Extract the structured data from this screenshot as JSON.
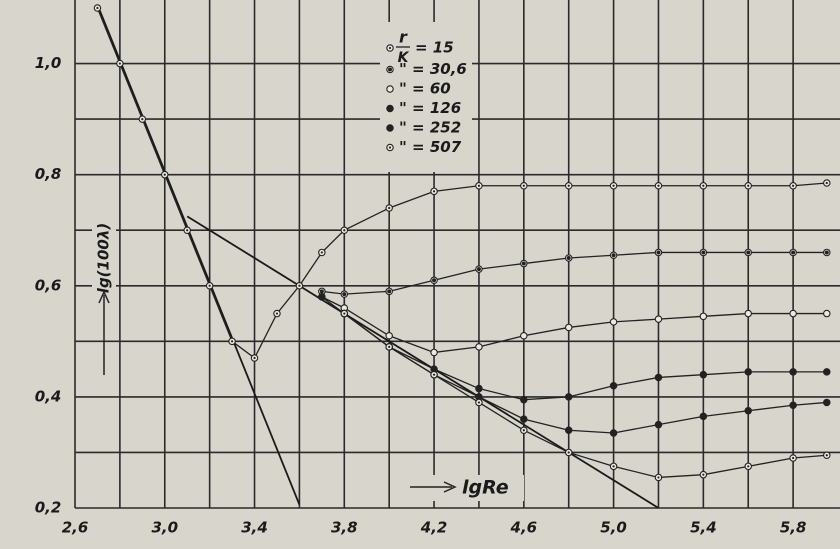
{
  "chart_data": {
    "type": "scatter",
    "xlabel": "lgRe",
    "ylabel": "lg(100λ)",
    "xlim": [
      2.6,
      6.0
    ],
    "ylim": [
      0.2,
      1.1
    ],
    "xticks": [
      {
        "value": 2.6,
        "label": "2,6"
      },
      {
        "value": 3.0,
        "label": "3,0"
      },
      {
        "value": 3.4,
        "label": "3,4"
      },
      {
        "value": 3.8,
        "label": "3,8"
      },
      {
        "value": 4.2,
        "label": "4,2"
      },
      {
        "value": 4.6,
        "label": "4,6"
      },
      {
        "value": 5.0,
        "label": "5,0"
      },
      {
        "value": 5.4,
        "label": "5,4"
      },
      {
        "value": 5.8,
        "label": "5,8"
      }
    ],
    "yticks": [
      {
        "value": 0.2,
        "label": "0,2"
      },
      {
        "value": 0.4,
        "label": "0,4"
      },
      {
        "value": 0.6,
        "label": "0,6"
      },
      {
        "value": 0.8,
        "label": "0,8"
      },
      {
        "value": 1.0,
        "label": "1,0"
      }
    ],
    "minor_xticks": [
      2.8,
      3.2,
      3.6,
      4.0,
      4.4,
      4.8,
      5.2,
      5.6
    ],
    "minor_yticks": [
      0.3,
      0.5,
      0.7,
      0.9
    ],
    "grid": true,
    "legend_title": {
      "numerator": "r",
      "denominator": "K"
    },
    "x": [
      2.7,
      2.8,
      2.9,
      3.0,
      3.1,
      3.2,
      3.3,
      3.4,
      3.5,
      3.6,
      3.7,
      3.8,
      4.0,
      4.2,
      4.4,
      4.6,
      4.8,
      5.0,
      5.2,
      5.4,
      5.6,
      5.8,
      5.95
    ],
    "series": [
      {
        "name": "= 15",
        "color": "#222",
        "marker": "dot",
        "values": [
          1.1,
          1.0,
          0.9,
          0.8,
          0.7,
          0.6,
          0.5,
          0.47,
          0.55,
          0.6,
          0.66,
          0.7,
          0.74,
          0.77,
          0.78,
          0.78,
          0.78,
          0.78,
          0.78,
          0.78,
          0.78,
          0.78,
          0.785
        ]
      },
      {
        "name": "\" = 30,6",
        "color": "#222",
        "marker": "half",
        "values": [
          null,
          null,
          null,
          null,
          null,
          null,
          null,
          null,
          null,
          null,
          0.59,
          0.585,
          0.59,
          0.61,
          0.63,
          0.64,
          0.65,
          0.655,
          0.66,
          0.66,
          0.66,
          0.66,
          0.66
        ]
      },
      {
        "name": "\" = 60",
        "color": "#222",
        "marker": "open",
        "values": [
          null,
          null,
          null,
          null,
          null,
          null,
          null,
          null,
          null,
          null,
          0.58,
          0.56,
          0.51,
          0.48,
          0.49,
          0.51,
          0.525,
          0.535,
          0.54,
          0.545,
          0.55,
          0.55,
          0.55
        ]
      },
      {
        "name": "\" = 126",
        "color": "#222",
        "marker": "filled",
        "values": [
          null,
          null,
          null,
          null,
          null,
          null,
          null,
          null,
          null,
          null,
          0.58,
          0.55,
          0.49,
          0.45,
          0.415,
          0.395,
          0.4,
          0.42,
          0.435,
          0.44,
          0.445,
          0.445,
          0.445
        ]
      },
      {
        "name": "\" = 252",
        "color": "#222",
        "marker": "filled",
        "values": [
          null,
          null,
          null,
          null,
          null,
          null,
          null,
          null,
          null,
          null,
          null,
          0.55,
          0.49,
          0.44,
          0.4,
          0.36,
          0.34,
          0.335,
          0.35,
          0.365,
          0.375,
          0.385,
          0.39
        ]
      },
      {
        "name": "\" = 507",
        "color": "#222",
        "marker": "dot",
        "values": [
          null,
          null,
          null,
          null,
          null,
          null,
          null,
          null,
          null,
          null,
          null,
          0.55,
          0.49,
          0.44,
          0.39,
          0.34,
          0.3,
          0.275,
          0.255,
          0.26,
          0.275,
          0.29,
          0.295
        ]
      }
    ],
    "reference_lines": [
      {
        "x": [
          2.7,
          3.6
        ],
        "values": [
          1.106,
          0.206
        ]
      },
      {
        "x": [
          3.1,
          5.2
        ],
        "values": [
          0.725,
          0.2
        ]
      }
    ]
  }
}
